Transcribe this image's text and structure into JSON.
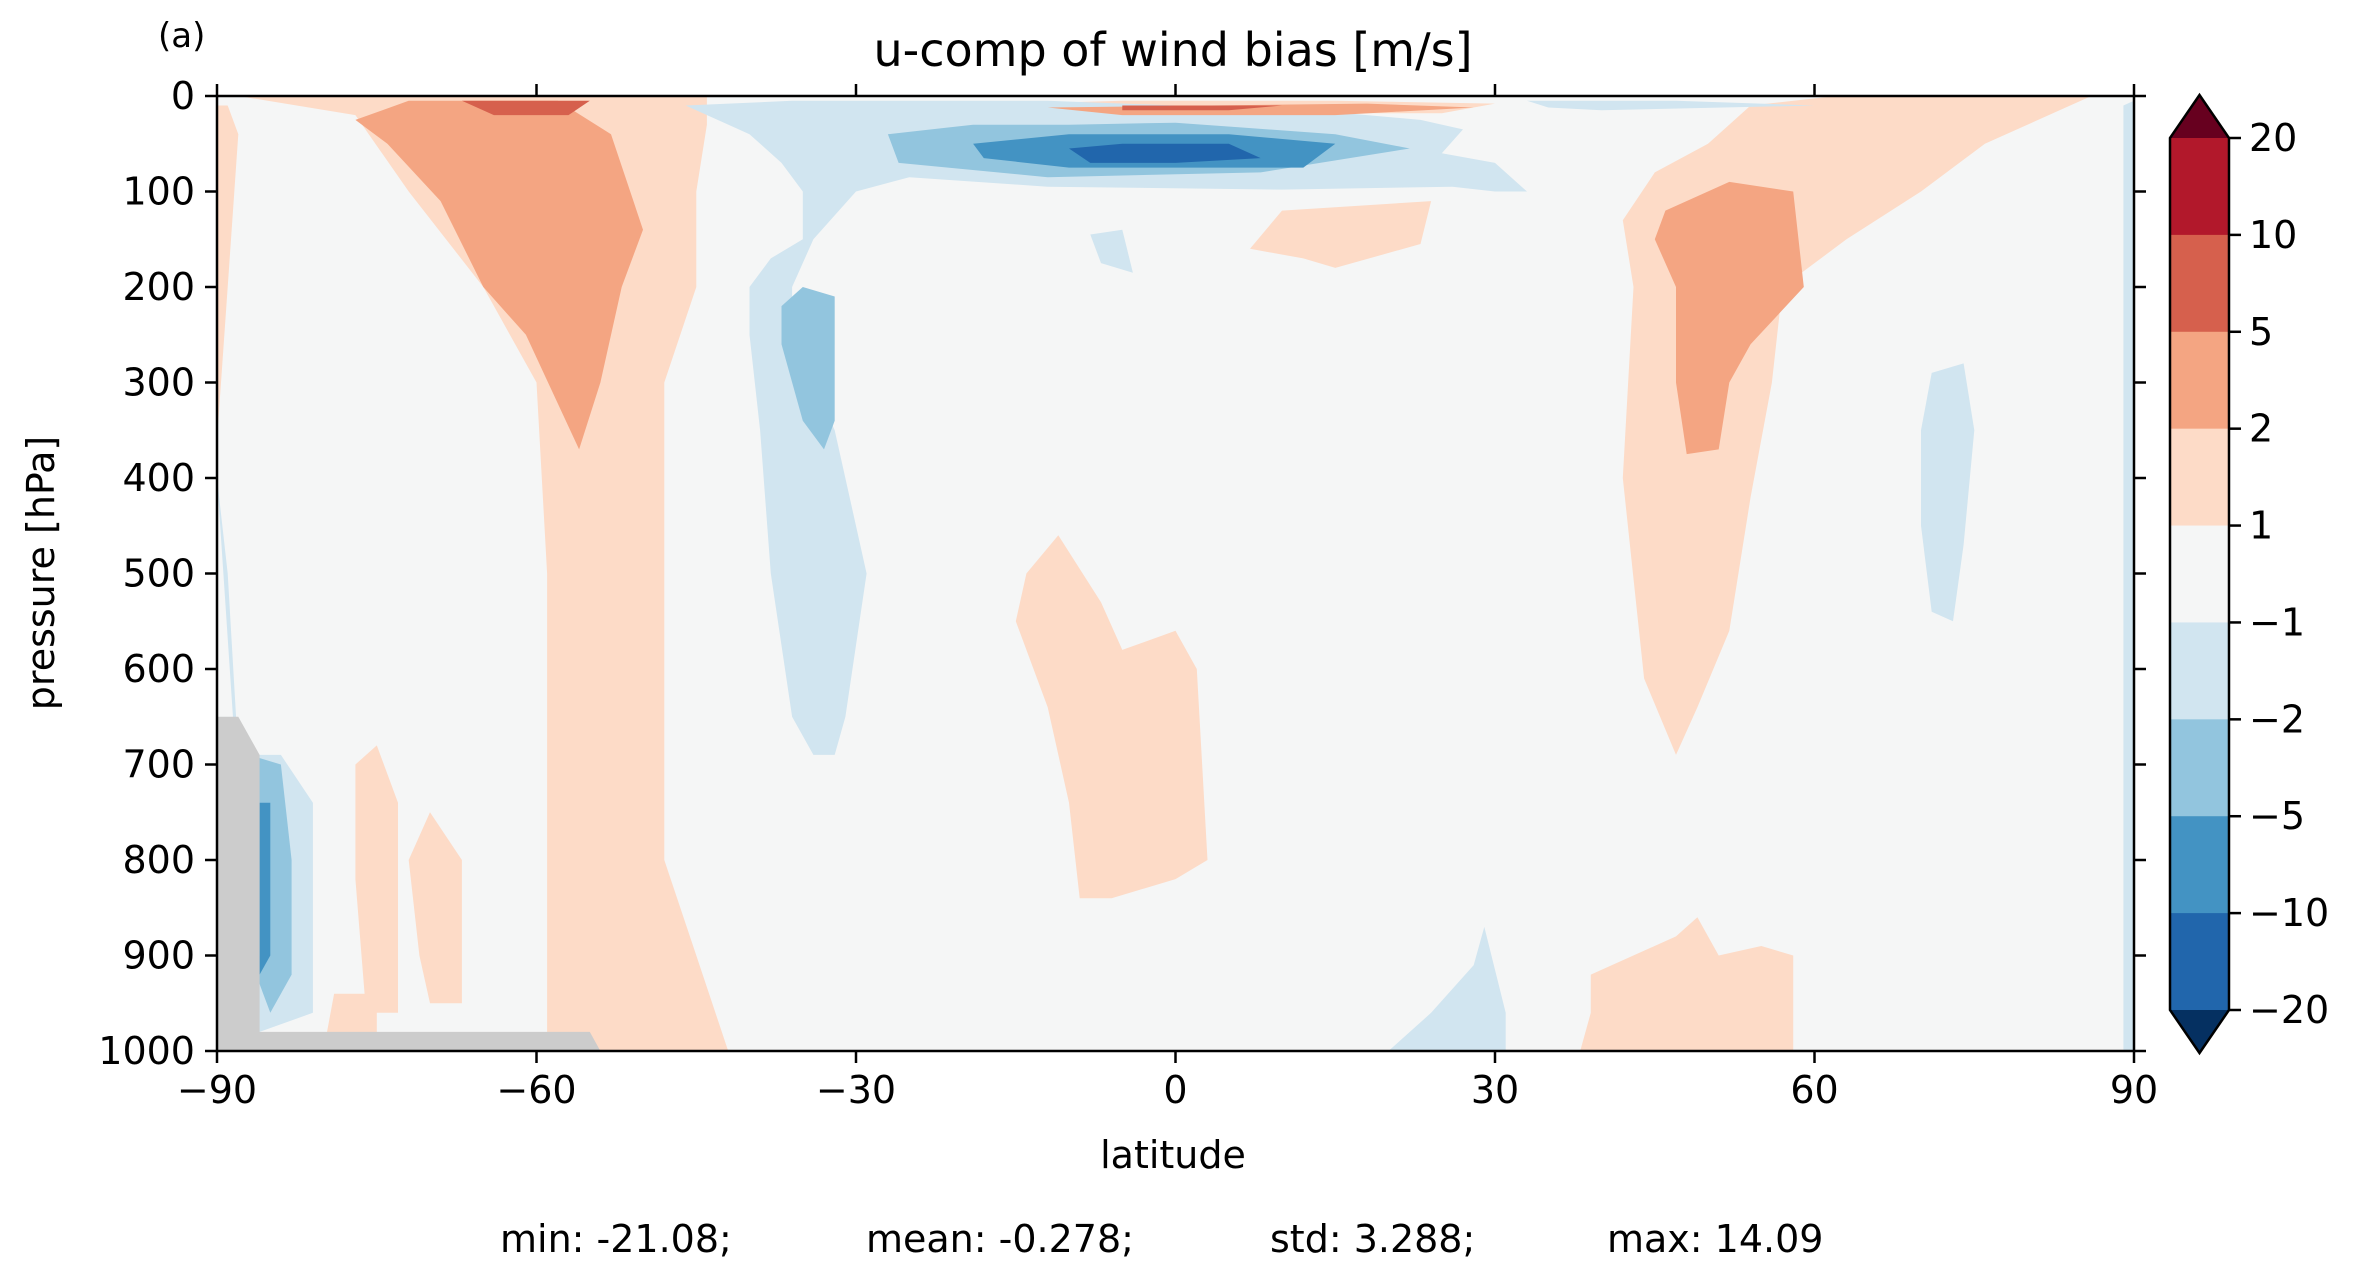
{
  "panel_label": "(a)",
  "title": "u-comp of wind bias [m/s]",
  "colors": {
    "gray_mask": "#cccccc",
    "background_level": "#f5f6f6"
  },
  "chart_data": {
    "type": "heatmap",
    "title": "u-comp of wind bias [m/s]",
    "xlabel": "latitude",
    "ylabel": "pressure [hPa]",
    "xlim": [
      -90,
      90
    ],
    "ylim": [
      1000,
      0
    ],
    "y_inverted": true,
    "grid": false,
    "x_ticks": [
      -90,
      -60,
      -30,
      0,
      30,
      60,
      90
    ],
    "x_tick_labels": [
      "−90",
      "−60",
      "−30",
      "0",
      "30",
      "60",
      "90"
    ],
    "y_ticks": [
      0,
      100,
      200,
      300,
      400,
      500,
      600,
      700,
      800,
      900,
      1000
    ],
    "y_tick_labels": [
      "0",
      "100",
      "200",
      "300",
      "400",
      "500",
      "600",
      "700",
      "800",
      "900",
      "1000"
    ],
    "colorbar": {
      "extend": "both",
      "tick_labels": [
        "20",
        "10",
        "5",
        "2",
        "1",
        "−1",
        "−2",
        "−5",
        "−10",
        "−20"
      ],
      "band_colors": [
        "#b2182b",
        "#d6604d",
        "#f4a582",
        "#fddbc7",
        "#f5f6f6",
        "#d1e5f0",
        "#92c5de",
        "#4393c3",
        "#2166ac"
      ],
      "over_color": "#67001f",
      "under_color": "#053061"
    },
    "regions": [
      {
        "level": 1,
        "pts": [
          [
            -90,
            0
          ],
          [
            -44,
            0
          ],
          [
            -44,
            30
          ],
          [
            -45,
            100
          ],
          [
            -45,
            200
          ],
          [
            -48,
            300
          ],
          [
            -48,
            400
          ],
          [
            -48,
            600
          ],
          [
            -48,
            800
          ],
          [
            -45,
            900
          ],
          [
            -42,
            1000
          ],
          [
            -59,
            1000
          ],
          [
            -59,
            900
          ],
          [
            -59,
            700
          ],
          [
            -59,
            500
          ],
          [
            -60,
            300
          ],
          [
            -65,
            200
          ],
          [
            -72,
            100
          ],
          [
            -77,
            20
          ],
          [
            -88,
            0
          ]
        ]
      },
      {
        "level": 1,
        "pts": [
          [
            -89,
            10
          ],
          [
            -88,
            40
          ],
          [
            -89,
            200
          ],
          [
            -90,
            360
          ],
          [
            -90,
            10
          ]
        ]
      },
      {
        "level": 1,
        "pts": [
          [
            -14,
            500
          ],
          [
            -11,
            460
          ],
          [
            -7,
            530
          ],
          [
            -5,
            580
          ],
          [
            0,
            560
          ],
          [
            2,
            600
          ],
          [
            3,
            800
          ],
          [
            0,
            820
          ],
          [
            -6,
            840
          ],
          [
            -9,
            840
          ],
          [
            -10,
            740
          ],
          [
            -12,
            640
          ],
          [
            -15,
            550
          ]
        ]
      },
      {
        "level": 1,
        "pts": [
          [
            -21,
            10
          ],
          [
            -5,
            5
          ],
          [
            15,
            5
          ],
          [
            30,
            8
          ],
          [
            25,
            18
          ],
          [
            5,
            18
          ],
          [
            -15,
            16
          ]
        ]
      },
      {
        "level": 1,
        "pts": [
          [
            10,
            120
          ],
          [
            24,
            110
          ],
          [
            23,
            155
          ],
          [
            15,
            180
          ],
          [
            12,
            170
          ],
          [
            7,
            160
          ]
        ]
      },
      {
        "level": 1,
        "pts": [
          [
            54,
            10
          ],
          [
            62,
            0
          ],
          [
            86,
            0
          ],
          [
            76,
            50
          ],
          [
            70,
            100
          ],
          [
            63,
            150
          ],
          [
            57,
            200
          ],
          [
            56,
            300
          ],
          [
            54,
            420
          ],
          [
            52,
            560
          ],
          [
            49,
            640
          ],
          [
            47,
            690
          ],
          [
            44,
            610
          ],
          [
            42,
            400
          ],
          [
            43,
            200
          ],
          [
            42,
            130
          ],
          [
            45,
            80
          ],
          [
            50,
            50
          ]
        ]
      },
      {
        "level": 1,
        "pts": [
          [
            -75,
            680
          ],
          [
            -73,
            740
          ],
          [
            -73,
            960
          ],
          [
            -76,
            960
          ],
          [
            -77,
            820
          ],
          [
            -77,
            700
          ]
        ]
      },
      {
        "level": 1,
        "pts": [
          [
            -70,
            750
          ],
          [
            -67,
            800
          ],
          [
            -67,
            950
          ],
          [
            -70,
            950
          ],
          [
            -71,
            900
          ],
          [
            -72,
            800
          ]
        ]
      },
      {
        "level": 1,
        "pts": [
          [
            -79,
            940
          ],
          [
            -75,
            940
          ],
          [
            -75,
            1000
          ],
          [
            -80,
            1000
          ]
        ]
      },
      {
        "level": 1,
        "pts": [
          [
            39,
            920
          ],
          [
            47,
            880
          ],
          [
            49,
            860
          ],
          [
            51,
            900
          ],
          [
            55,
            890
          ],
          [
            58,
            900
          ],
          [
            58,
            1000
          ],
          [
            38,
            1000
          ],
          [
            39,
            960
          ]
        ]
      },
      {
        "level": 2,
        "pts": [
          [
            -77,
            25
          ],
          [
            -72,
            5
          ],
          [
            -58,
            5
          ],
          [
            -53,
            40
          ],
          [
            -50,
            140
          ],
          [
            -52,
            200
          ],
          [
            -54,
            300
          ],
          [
            -56,
            370
          ],
          [
            -61,
            250
          ],
          [
            -65,
            200
          ],
          [
            -69,
            110
          ],
          [
            -74,
            50
          ]
        ]
      },
      {
        "level": 2,
        "pts": [
          [
            -12,
            12
          ],
          [
            18,
            8
          ],
          [
            28,
            12
          ],
          [
            15,
            20
          ],
          [
            -5,
            20
          ]
        ]
      },
      {
        "level": 2,
        "pts": [
          [
            46,
            120
          ],
          [
            52,
            90
          ],
          [
            58,
            100
          ],
          [
            59,
            200
          ],
          [
            54,
            260
          ],
          [
            52,
            300
          ],
          [
            51,
            370
          ],
          [
            48,
            375
          ],
          [
            47,
            300
          ],
          [
            47,
            200
          ],
          [
            45,
            150
          ]
        ]
      },
      {
        "level": 3,
        "pts": [
          [
            -67,
            5
          ],
          [
            -55,
            5
          ],
          [
            -57,
            20
          ],
          [
            -64,
            20
          ]
        ]
      },
      {
        "level": 3,
        "pts": [
          [
            -5,
            10
          ],
          [
            10,
            10
          ],
          [
            5,
            15
          ],
          [
            -5,
            15
          ]
        ]
      },
      {
        "level": -1,
        "pts": [
          [
            -46,
            10
          ],
          [
            -36,
            5
          ],
          [
            -20,
            5
          ],
          [
            -12,
            5
          ],
          [
            0,
            10
          ],
          [
            16,
            18
          ],
          [
            23,
            25
          ],
          [
            27,
            35
          ],
          [
            25,
            60
          ],
          [
            30,
            70
          ],
          [
            33,
            100
          ],
          [
            30,
            100
          ],
          [
            26,
            95
          ],
          [
            10,
            98
          ],
          [
            -12,
            95
          ],
          [
            -25,
            85
          ],
          [
            -30,
            100
          ],
          [
            -34,
            150
          ],
          [
            -36,
            200
          ],
          [
            -36,
            250
          ],
          [
            -32,
            350
          ],
          [
            -29,
            500
          ],
          [
            -31,
            650
          ],
          [
            -32,
            690
          ],
          [
            -34,
            690
          ],
          [
            -36,
            650
          ],
          [
            -38,
            500
          ],
          [
            -39,
            350
          ],
          [
            -40,
            250
          ],
          [
            -40,
            200
          ],
          [
            -38,
            170
          ],
          [
            -35,
            150
          ],
          [
            -35,
            100
          ],
          [
            -37,
            70
          ],
          [
            -40,
            40
          ]
        ]
      },
      {
        "level": -1,
        "pts": [
          [
            33,
            5
          ],
          [
            47,
            5
          ],
          [
            60,
            10
          ],
          [
            40,
            15
          ],
          [
            35,
            12
          ]
        ]
      },
      {
        "level": -1,
        "pts": [
          [
            -8,
            145
          ],
          [
            -5,
            140
          ],
          [
            -4,
            185
          ],
          [
            -7,
            175
          ]
        ]
      },
      {
        "level": -1,
        "pts": [
          [
            71,
            290
          ],
          [
            74,
            280
          ],
          [
            75,
            350
          ],
          [
            74,
            470
          ],
          [
            73,
            550
          ],
          [
            71,
            540
          ],
          [
            70,
            450
          ],
          [
            70,
            350
          ]
        ]
      },
      {
        "level": -1,
        "pts": [
          [
            -90,
            400
          ],
          [
            -89,
            500
          ],
          [
            -88,
            690
          ],
          [
            -84,
            690
          ],
          [
            -81,
            740
          ],
          [
            -81,
            960
          ],
          [
            -86,
            980
          ],
          [
            -87,
            900
          ]
        ]
      },
      {
        "level": -1,
        "pts": [
          [
            20,
            1000
          ],
          [
            24,
            960
          ],
          [
            28,
            910
          ],
          [
            29,
            870
          ],
          [
            31,
            960
          ],
          [
            31,
            1000
          ]
        ]
      },
      {
        "level": -1,
        "pts": [
          [
            89,
            10
          ],
          [
            90,
            5
          ],
          [
            90,
            1000
          ],
          [
            89,
            1000
          ]
        ]
      },
      {
        "level": -2,
        "pts": [
          [
            -27,
            40
          ],
          [
            -19,
            30
          ],
          [
            -10,
            30
          ],
          [
            0,
            28
          ],
          [
            15,
            40
          ],
          [
            22,
            55
          ],
          [
            8,
            80
          ],
          [
            -12,
            85
          ],
          [
            -26,
            70
          ]
        ]
      },
      {
        "level": -2,
        "pts": [
          [
            -37,
            220
          ],
          [
            -35,
            200
          ],
          [
            -32,
            210
          ],
          [
            -32,
            340
          ],
          [
            -33,
            370
          ],
          [
            -35,
            340
          ],
          [
            -37,
            260
          ]
        ]
      },
      {
        "level": -2,
        "pts": [
          [
            -87,
            690
          ],
          [
            -84,
            700
          ],
          [
            -83,
            800
          ],
          [
            -83,
            920
          ],
          [
            -85,
            960
          ],
          [
            -87,
            900
          ]
        ]
      },
      {
        "level": -3,
        "pts": [
          [
            -19,
            50
          ],
          [
            -10,
            40
          ],
          [
            5,
            40
          ],
          [
            15,
            50
          ],
          [
            12,
            75
          ],
          [
            -10,
            75
          ],
          [
            -18,
            65
          ]
        ]
      },
      {
        "level": -3,
        "pts": [
          [
            -86,
            740
          ],
          [
            -85,
            740
          ],
          [
            -85,
            900
          ],
          [
            -86,
            920
          ]
        ]
      },
      {
        "level": -4,
        "pts": [
          [
            -10,
            55
          ],
          [
            -5,
            50
          ],
          [
            5,
            50
          ],
          [
            8,
            65
          ],
          [
            0,
            70
          ],
          [
            -8,
            70
          ]
        ]
      }
    ],
    "mask_regions": [
      {
        "pts": [
          [
            -90,
            650
          ],
          [
            -88,
            650
          ],
          [
            -86,
            690
          ],
          [
            -86,
            980
          ],
          [
            -55,
            980
          ],
          [
            -54,
            1000
          ],
          [
            -90,
            1000
          ]
        ]
      }
    ],
    "stats": {
      "min": "-21.08",
      "mean": "-0.278",
      "std": "3.288",
      "max": "14.09"
    }
  },
  "stats_line": {
    "min": "min: -21.08;",
    "mean": "mean: -0.278;",
    "std": "std: 3.288;",
    "max": "max: 14.09"
  }
}
